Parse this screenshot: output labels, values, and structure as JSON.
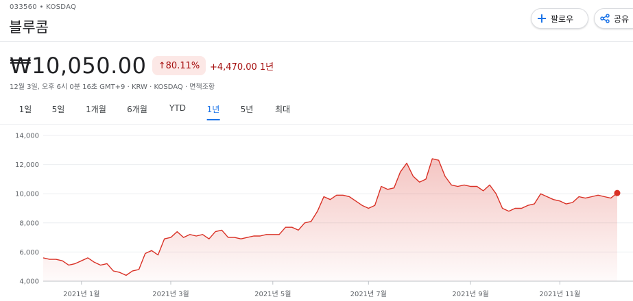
{
  "header": {
    "ticker": "033560 • KOSDAQ",
    "name": "블루콤",
    "follow_button": "팔로우",
    "share_button": "공유",
    "price": "₩10,050.00",
    "change_percent": "↑80.11%",
    "change_value": "+4,470.00 1년",
    "info": "12월 3일, 오후 6시 0분 16초 GMT+9 · KRW · KOSDAQ · 면책조항"
  },
  "tabs": [
    "1일",
    "5일",
    "1개월",
    "6개월",
    "YTD",
    "1년",
    "5년",
    "최대"
  ],
  "active_tab": "1년",
  "chart_data": {
    "type": "area",
    "color": "#d93025",
    "values": [
      5600,
      5500,
      5500,
      5400,
      5100,
      5200,
      5400,
      5600,
      5300,
      5100,
      5200,
      4700,
      4600,
      4400,
      4700,
      4800,
      5900,
      6100,
      5800,
      6900,
      7000,
      7400,
      7000,
      7200,
      7100,
      7200,
      6900,
      7400,
      7500,
      7000,
      7000,
      6900,
      7000,
      7100,
      7100,
      7200,
      7200,
      7200,
      7700,
      7700,
      7500,
      8000,
      8100,
      8800,
      9800,
      9600,
      9900,
      9900,
      9800,
      9500,
      9200,
      9000,
      9200,
      10500,
      10300,
      10400,
      11500,
      12100,
      11200,
      10800,
      11000,
      12400,
      12300,
      11200,
      10600,
      10500,
      10600,
      10500,
      10500,
      10200,
      10600,
      10000,
      9000,
      8800,
      9000,
      9000,
      9200,
      9300,
      10000,
      9800,
      9600,
      9500,
      9300,
      9400,
      9800,
      9700,
      9800,
      9900,
      9800,
      9700,
      10050
    ],
    "xlim": [
      0,
      90
    ],
    "xticks": [
      {
        "value": 6,
        "label": "2021년 1월"
      },
      {
        "value": 20,
        "label": "2021년 3월"
      },
      {
        "value": 36,
        "label": "2021년 5월"
      },
      {
        "value": 51,
        "label": "2021년 7월"
      },
      {
        "value": 67,
        "label": "2021년 9월"
      },
      {
        "value": 81,
        "label": "2021년 11월"
      }
    ],
    "ylim": [
      4000,
      14000
    ],
    "yticks": [
      {
        "value": 4000,
        "label": "4,000"
      },
      {
        "value": 6000,
        "label": "6,000"
      },
      {
        "value": 8000,
        "label": "8,000"
      },
      {
        "value": 10000,
        "label": "10,000"
      },
      {
        "value": 12000,
        "label": "12,000"
      },
      {
        "value": 14000,
        "label": "14,000"
      }
    ],
    "grid": true
  }
}
